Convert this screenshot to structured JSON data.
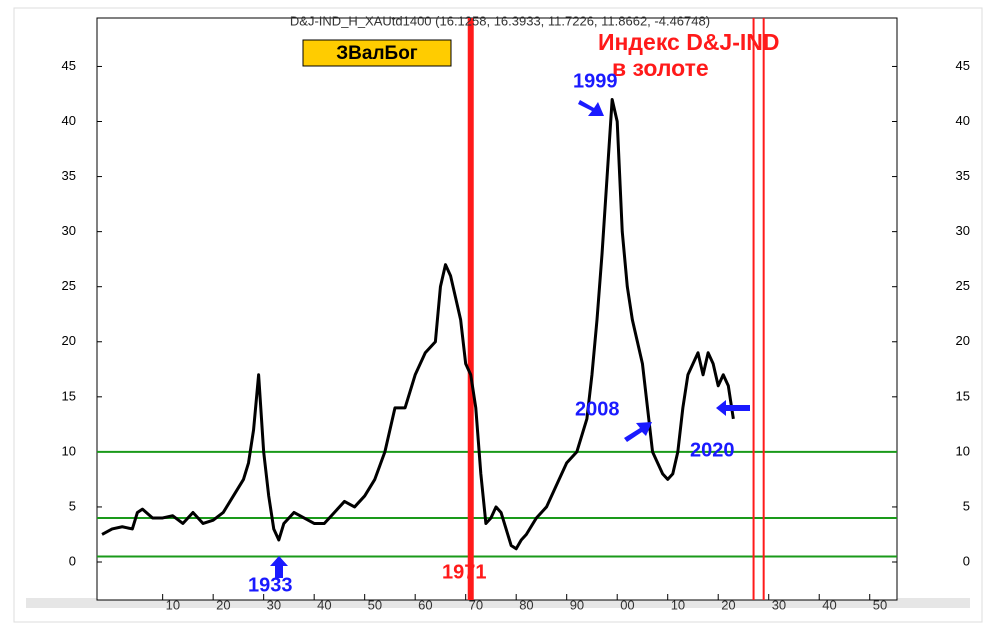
{
  "chart_data": {
    "type": "line",
    "title": "D&J-IND_H_XAUtd1400 (16.1258, 16.3933, 11.7226, 11.8662, -4.46748)",
    "badge": "ЗВалБог",
    "annotations": [
      "Индекс D&J-IND",
      "в золоте",
      "1999",
      "2008",
      "2020",
      "1933",
      "1971"
    ],
    "x": [
      1898,
      1900,
      1902,
      1904,
      1905,
      1906,
      1908,
      1910,
      1912,
      1914,
      1916,
      1918,
      1920,
      1922,
      1924,
      1926,
      1927,
      1928,
      1929,
      1930,
      1931,
      1932,
      1933,
      1934,
      1936,
      1938,
      1940,
      1942,
      1944,
      1946,
      1948,
      1950,
      1952,
      1954,
      1956,
      1958,
      1960,
      1962,
      1964,
      1965,
      1966,
      1967,
      1968,
      1969,
      1970,
      1971,
      1972,
      1973,
      1974,
      1975,
      1976,
      1977,
      1978,
      1979,
      1980,
      1981,
      1982,
      1984,
      1986,
      1988,
      1990,
      1992,
      1994,
      1995,
      1996,
      1997,
      1998,
      1999,
      2000,
      2001,
      2002,
      2003,
      2004,
      2005,
      2006,
      2007,
      2008,
      2009,
      2010,
      2011,
      2012,
      2013,
      2014,
      2015,
      2016,
      2017,
      2018,
      2019,
      2020,
      2021,
      2022,
      2023
    ],
    "series": [
      {
        "color": "#000000",
        "values": [
          2.5,
          3,
          3.2,
          3,
          4.5,
          4.8,
          4,
          4,
          4.2,
          3.5,
          4.5,
          3.5,
          3.8,
          4.5,
          6,
          7.5,
          9,
          12,
          17,
          10,
          6,
          3,
          2,
          3.5,
          4.5,
          4,
          3.5,
          3.5,
          4.5,
          5.5,
          5,
          6,
          7.5,
          10,
          14,
          14,
          17,
          19,
          20,
          25,
          27,
          26,
          24,
          22,
          18,
          17,
          14,
          8,
          3.5,
          4,
          5,
          4.5,
          3,
          1.5,
          1.2,
          2,
          2.5,
          4,
          5,
          7,
          9,
          10,
          13,
          17,
          22,
          28,
          35,
          42,
          40,
          30,
          25,
          22,
          20,
          18,
          14,
          10,
          9,
          8,
          7.5,
          8,
          10,
          14,
          17,
          18,
          19,
          17,
          19,
          18,
          16,
          17,
          16,
          13
        ]
      }
    ],
    "xlim": [
      1897,
      2055.4
    ],
    "xticks": [
      {
        "value": 1910,
        "label": "10"
      },
      {
        "value": 1920,
        "label": "20"
      },
      {
        "value": 1930,
        "label": "30"
      },
      {
        "value": 1940,
        "label": "40"
      },
      {
        "value": 1950,
        "label": "50"
      },
      {
        "value": 1960,
        "label": "60"
      },
      {
        "value": 1970,
        "label": "70"
      },
      {
        "value": 1980,
        "label": "80"
      },
      {
        "value": 1990,
        "label": "90"
      },
      {
        "value": 2000,
        "label": "00"
      },
      {
        "value": 2010,
        "label": "10"
      },
      {
        "value": 2020,
        "label": "20"
      },
      {
        "value": 2030,
        "label": "30"
      },
      {
        "value": 2040,
        "label": "40"
      },
      {
        "value": 2050,
        "label": "50"
      }
    ],
    "ylim": [
      -3.45,
      49.4
    ],
    "yticks": [
      0,
      5,
      10,
      15,
      20,
      25,
      30,
      35,
      40,
      45
    ],
    "hlines": [
      10,
      4,
      0.5
    ],
    "hline_color": "#1a9a1a",
    "vlines": [
      1971,
      2027,
      2029
    ],
    "vline_color": "#ff1a1a"
  }
}
